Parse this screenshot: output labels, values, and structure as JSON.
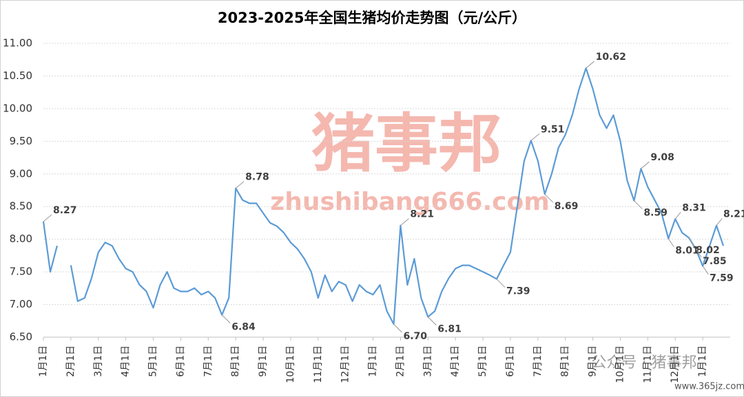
{
  "chart_data": {
    "type": "line",
    "title": "2023-2025年全国生猪均价走势图（元/公斤）",
    "categories": [
      "1月1日",
      null,
      null,
      null,
      "2月1日",
      null,
      null,
      null,
      "3月1日",
      null,
      null,
      null,
      "4月1日",
      null,
      null,
      null,
      "5月1日",
      null,
      null,
      null,
      "6月1日",
      null,
      null,
      null,
      "7月1日",
      null,
      null,
      null,
      "8月1日",
      null,
      null,
      null,
      "9月1日",
      null,
      null,
      null,
      "10月1日",
      null,
      null,
      null,
      "11月1日",
      null,
      null,
      null,
      "12月1日",
      null,
      null,
      null,
      "1月1日",
      null,
      null,
      null,
      "2月1日",
      null,
      null,
      null,
      "3月1日",
      null,
      null,
      null,
      "4月1日",
      null,
      null,
      null,
      "5月1日",
      null,
      null,
      null,
      "6月1日",
      null,
      null,
      null,
      "7月1日",
      null,
      null,
      null,
      "8月1日",
      null,
      null,
      null,
      "9月1日",
      null,
      null,
      null,
      "10月1日",
      null,
      null,
      null,
      "11月1日",
      null,
      null,
      null,
      "12月1日",
      null,
      null,
      null,
      "1月1日",
      null,
      null,
      null
    ],
    "series": [
      {
        "name": "生猪均价",
        "color": "#5b9bd5",
        "values": [
          8.27,
          7.5,
          7.9,
          null,
          7.6,
          7.05,
          7.1,
          7.4,
          7.8,
          7.95,
          7.9,
          7.7,
          7.55,
          7.5,
          7.3,
          7.2,
          6.95,
          7.3,
          7.5,
          7.25,
          7.2,
          7.2,
          7.25,
          7.15,
          7.2,
          7.1,
          6.84,
          7.1,
          8.78,
          8.6,
          8.55,
          8.55,
          8.4,
          8.25,
          8.2,
          8.1,
          7.95,
          7.85,
          7.7,
          7.5,
          7.1,
          7.45,
          7.2,
          7.35,
          7.3,
          7.05,
          7.3,
          7.2,
          7.15,
          7.3,
          6.9,
          6.7,
          8.21,
          7.3,
          7.7,
          7.1,
          6.81,
          6.9,
          7.2,
          7.4,
          7.55,
          7.6,
          7.6,
          7.55,
          7.5,
          7.45,
          7.39,
          7.6,
          7.8,
          8.5,
          9.2,
          9.51,
          9.2,
          8.69,
          9.0,
          9.4,
          9.6,
          9.9,
          10.3,
          10.62,
          10.3,
          9.9,
          9.7,
          9.9,
          9.5,
          8.9,
          8.59,
          9.08,
          8.8,
          8.6,
          8.4,
          8.01,
          8.31,
          8.1,
          8.02,
          7.85,
          7.59,
          7.9,
          8.21,
          7.9
        ],
        "value_labels": [
          "8.27",
          null,
          null,
          null,
          null,
          null,
          null,
          null,
          null,
          null,
          null,
          null,
          null,
          null,
          null,
          null,
          null,
          null,
          null,
          null,
          null,
          null,
          null,
          null,
          null,
          null,
          "6.84",
          null,
          "8.78",
          null,
          null,
          null,
          null,
          null,
          null,
          null,
          null,
          null,
          null,
          null,
          null,
          null,
          null,
          null,
          null,
          null,
          null,
          null,
          null,
          null,
          null,
          "6.70",
          "8.21",
          null,
          null,
          null,
          "6.81",
          null,
          null,
          null,
          null,
          null,
          null,
          null,
          null,
          null,
          "7.39",
          null,
          null,
          null,
          null,
          "9.51",
          null,
          "8.69",
          null,
          null,
          null,
          null,
          null,
          "10.62",
          null,
          null,
          null,
          null,
          null,
          null,
          "8.59",
          "9.08",
          null,
          null,
          null,
          "8.01",
          "8.31",
          null,
          "8.02",
          "7.85",
          "7.59",
          null,
          "8.21",
          null
        ]
      }
    ],
    "ylim": [
      6.5,
      11
    ],
    "yticks": [
      {
        "value": 6.5,
        "label": "6.50"
      },
      {
        "value": 7,
        "label": "7.00"
      },
      {
        "value": 7.5,
        "label": "7.50"
      },
      {
        "value": 8,
        "label": "8.00"
      },
      {
        "value": 8.5,
        "label": "8.50"
      },
      {
        "value": 9,
        "label": "9.00"
      },
      {
        "value": 9.5,
        "label": "9.50"
      },
      {
        "value": 10,
        "label": "10.00"
      },
      {
        "value": 10.5,
        "label": "10.50"
      },
      {
        "value": 11,
        "label": "11.00"
      }
    ],
    "grid": true
  },
  "watermarks": [
    "猪事邦",
    "zhushibang666.com",
    "公众号 · 猪事邦",
    "www.365jz.com"
  ]
}
